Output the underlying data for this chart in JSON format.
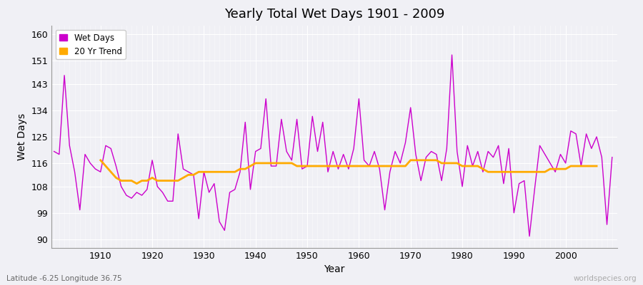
{
  "title": "Yearly Total Wet Days 1901 - 2009",
  "xlabel": "Year",
  "ylabel": "Wet Days",
  "subtitle": "Latitude -6.25 Longitude 36.75",
  "watermark": "worldspecies.org",
  "legend": [
    "Wet Days",
    "20 Yr Trend"
  ],
  "line_color": "#cc00cc",
  "trend_color": "#ffaa00",
  "bg_color": "#f0f0f5",
  "yticks": [
    90,
    99,
    108,
    116,
    125,
    134,
    143,
    151,
    160
  ],
  "ylim": [
    87,
    163
  ],
  "xlim": [
    1900.5,
    2010
  ],
  "xticks": [
    1910,
    1920,
    1930,
    1940,
    1950,
    1960,
    1970,
    1980,
    1990,
    2000
  ],
  "years": [
    1901,
    1902,
    1903,
    1904,
    1905,
    1906,
    1907,
    1908,
    1909,
    1910,
    1911,
    1912,
    1913,
    1914,
    1915,
    1916,
    1917,
    1918,
    1919,
    1920,
    1921,
    1922,
    1923,
    1924,
    1925,
    1926,
    1927,
    1928,
    1929,
    1930,
    1931,
    1932,
    1933,
    1934,
    1935,
    1936,
    1937,
    1938,
    1939,
    1940,
    1941,
    1942,
    1943,
    1944,
    1945,
    1946,
    1947,
    1948,
    1949,
    1950,
    1951,
    1952,
    1953,
    1954,
    1955,
    1956,
    1957,
    1958,
    1959,
    1960,
    1961,
    1962,
    1963,
    1964,
    1965,
    1966,
    1967,
    1968,
    1969,
    1970,
    1971,
    1972,
    1973,
    1974,
    1975,
    1976,
    1977,
    1978,
    1979,
    1980,
    1981,
    1982,
    1983,
    1984,
    1985,
    1986,
    1987,
    1988,
    1989,
    1990,
    1991,
    1992,
    1993,
    1994,
    1995,
    1996,
    1997,
    1998,
    1999,
    2000,
    2001,
    2002,
    2003,
    2004,
    2005,
    2006,
    2007,
    2008,
    2009
  ],
  "wet_days": [
    120,
    119,
    146,
    122,
    113,
    100,
    119,
    116,
    114,
    113,
    122,
    121,
    115,
    108,
    105,
    104,
    106,
    105,
    107,
    117,
    108,
    106,
    103,
    103,
    126,
    114,
    113,
    112,
    97,
    113,
    106,
    109,
    96,
    93,
    106,
    107,
    113,
    130,
    107,
    120,
    121,
    138,
    115,
    115,
    131,
    120,
    117,
    131,
    114,
    115,
    132,
    120,
    130,
    113,
    120,
    114,
    119,
    114,
    121,
    138,
    117,
    115,
    120,
    114,
    100,
    113,
    120,
    116,
    123,
    135,
    119,
    110,
    118,
    120,
    119,
    110,
    121,
    153,
    120,
    108,
    122,
    115,
    120,
    113,
    120,
    118,
    122,
    109,
    121,
    99,
    109,
    110,
    91,
    107,
    122,
    119,
    116,
    113,
    119,
    116,
    127,
    126,
    115,
    126,
    121,
    125,
    118,
    95,
    118
  ],
  "trend_values": [
    null,
    null,
    null,
    null,
    null,
    null,
    null,
    null,
    null,
    117,
    115,
    113,
    111,
    110,
    110,
    110,
    109,
    110,
    110,
    111,
    110,
    110,
    110,
    110,
    110,
    111,
    112,
    112,
    113,
    113,
    113,
    113,
    113,
    113,
    113,
    113,
    114,
    114,
    115,
    116,
    116,
    116,
    116,
    116,
    116,
    116,
    116,
    115,
    115,
    115,
    115,
    115,
    115,
    115,
    115,
    115,
    115,
    115,
    115,
    115,
    115,
    115,
    115,
    115,
    115,
    115,
    115,
    115,
    115,
    117,
    117,
    117,
    117,
    117,
    117,
    116,
    116,
    116,
    116,
    115,
    115,
    115,
    115,
    114,
    113,
    113,
    113,
    113,
    113,
    113,
    113,
    113,
    113,
    113,
    113,
    113,
    114,
    114,
    114,
    114,
    115,
    115,
    115,
    115,
    115,
    115,
    null,
    null,
    null
  ]
}
